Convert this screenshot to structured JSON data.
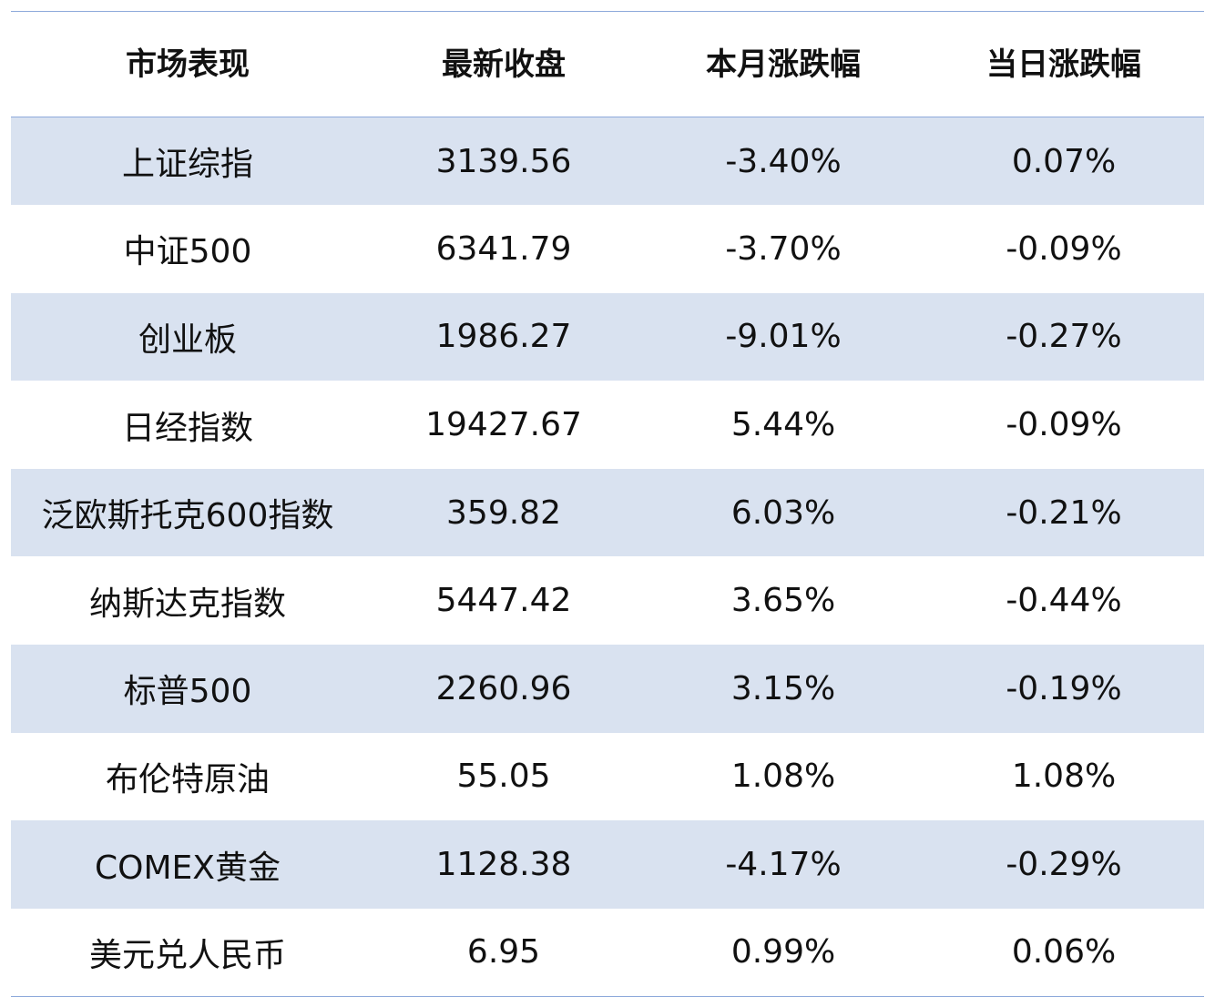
{
  "table": {
    "headers": [
      "市场表现",
      "最新收盘",
      "本月涨跌幅",
      "当日涨跌幅"
    ],
    "rows": [
      [
        "上证综指",
        "3139.56",
        "-3.40%",
        "0.07%"
      ],
      [
        "中证500",
        "6341.79",
        "-3.70%",
        "-0.09%"
      ],
      [
        "创业板",
        "1986.27",
        "-9.01%",
        "-0.27%"
      ],
      [
        "日经指数",
        "19427.67",
        "5.44%",
        "-0.09%"
      ],
      [
        "泛欧斯托克600指数",
        "359.82",
        "6.03%",
        "-0.21%"
      ],
      [
        "纳斯达克指数",
        "5447.42",
        "3.65%",
        "-0.44%"
      ],
      [
        "标普500",
        "2260.96",
        "3.15%",
        "-0.19%"
      ],
      [
        "布伦特原油",
        "55.05",
        "1.08%",
        "1.08%"
      ],
      [
        "COMEX黄金",
        "1128.38",
        "-4.17%",
        "-0.29%"
      ],
      [
        "美元兑人民币",
        "6.95",
        "0.99%",
        "0.06%"
      ]
    ]
  },
  "colors": {
    "shaded_row": "#d9e2f0",
    "rule": "#8eaadb",
    "text": "#111111"
  }
}
